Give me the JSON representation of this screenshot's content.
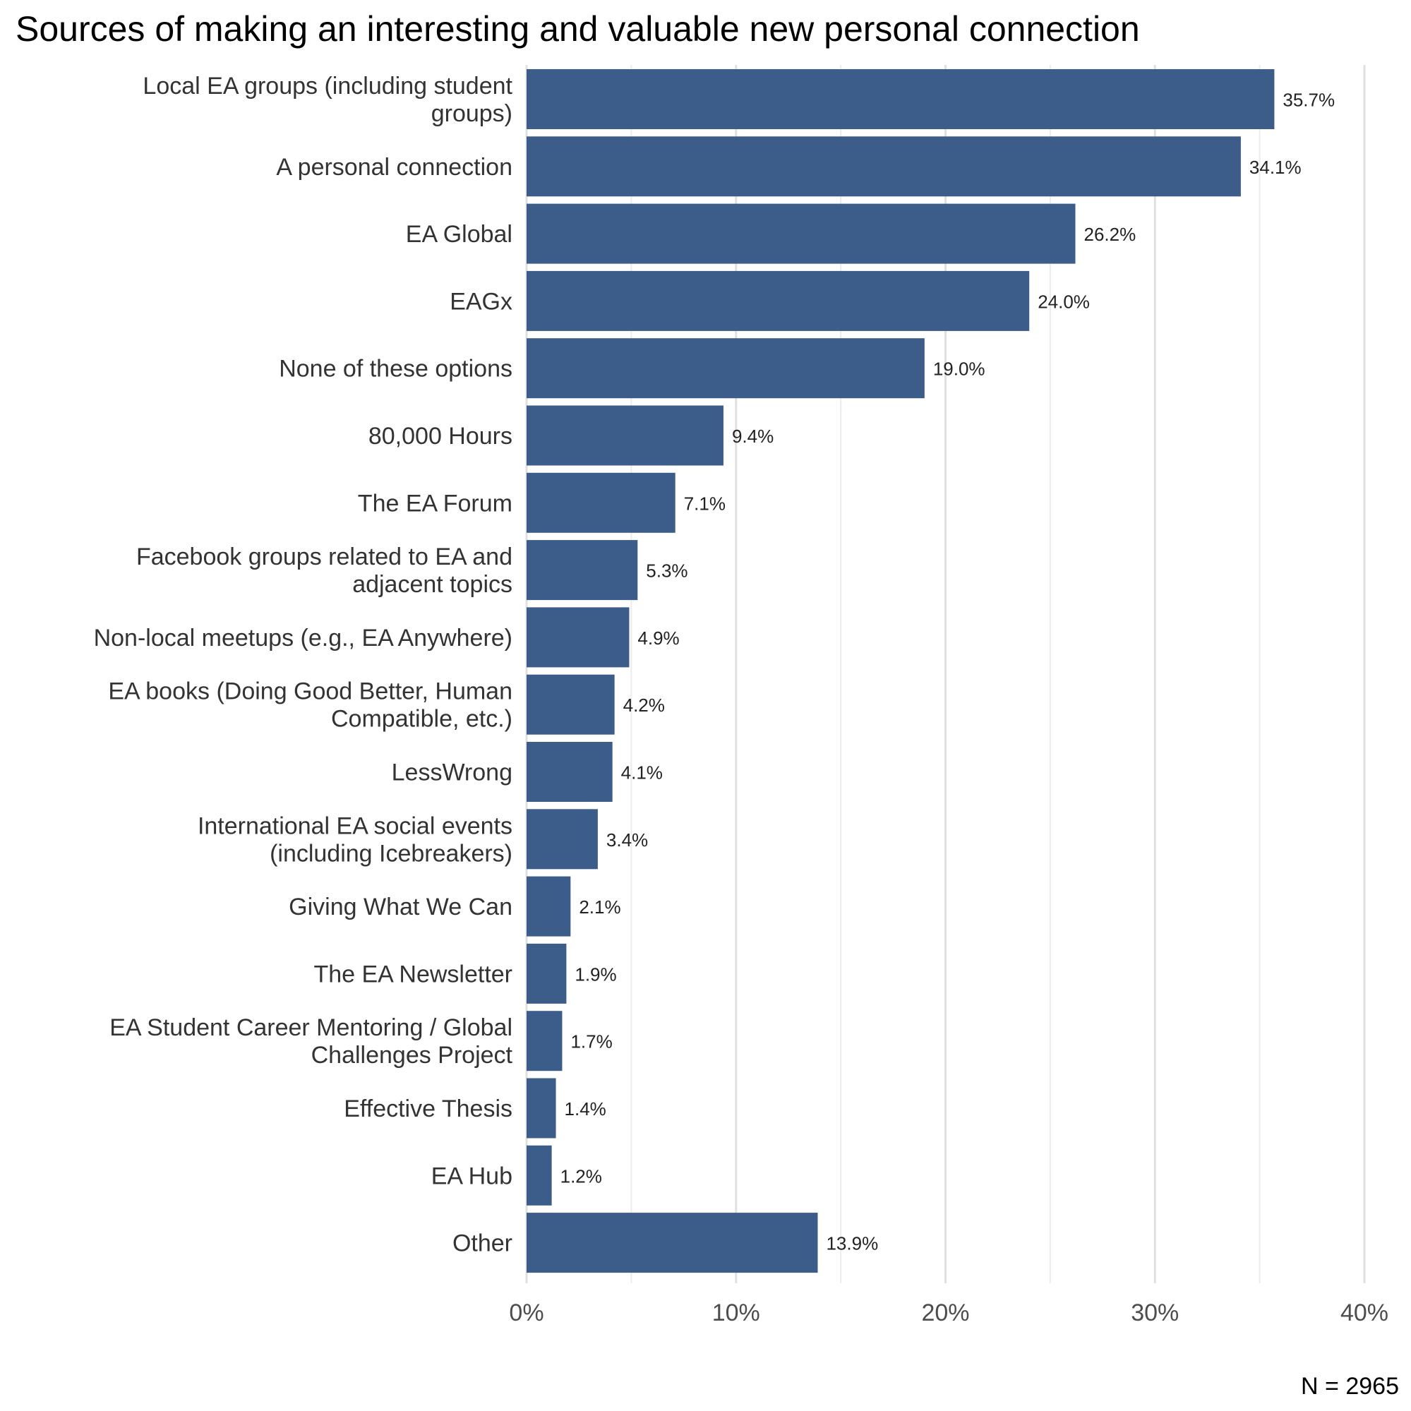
{
  "chart_data": {
    "type": "bar",
    "orientation": "horizontal",
    "title": "Sources of making an interesting and valuable new personal connection",
    "caption": "N = 2965",
    "xlabel": "",
    "ylabel": "",
    "xlim": [
      0,
      40
    ],
    "x_ticks": [
      "0%",
      "10%",
      "20%",
      "30%",
      "40%"
    ],
    "x_tick_values": [
      0,
      10,
      20,
      30,
      40
    ],
    "bar_color": "#3c5d8a",
    "grid": true,
    "categories": [
      {
        "label_lines": [
          "Local EA groups (including student",
          "groups)"
        ],
        "value": 35.7,
        "value_label": "35.7%"
      },
      {
        "label_lines": [
          "A personal connection"
        ],
        "value": 34.1,
        "value_label": "34.1%"
      },
      {
        "label_lines": [
          "EA Global"
        ],
        "value": 26.2,
        "value_label": "26.2%"
      },
      {
        "label_lines": [
          "EAGx"
        ],
        "value": 24.0,
        "value_label": "24.0%"
      },
      {
        "label_lines": [
          "None of these options"
        ],
        "value": 19.0,
        "value_label": "19.0%"
      },
      {
        "label_lines": [
          "80,000 Hours"
        ],
        "value": 9.4,
        "value_label": "9.4%"
      },
      {
        "label_lines": [
          "The EA Forum"
        ],
        "value": 7.1,
        "value_label": "7.1%"
      },
      {
        "label_lines": [
          "Facebook groups related to EA and",
          "adjacent topics"
        ],
        "value": 5.3,
        "value_label": "5.3%"
      },
      {
        "label_lines": [
          "Non-local meetups (e.g., EA Anywhere)"
        ],
        "value": 4.9,
        "value_label": "4.9%"
      },
      {
        "label_lines": [
          "EA books (Doing Good Better, Human",
          "Compatible, etc.)"
        ],
        "value": 4.2,
        "value_label": "4.2%"
      },
      {
        "label_lines": [
          "LessWrong"
        ],
        "value": 4.1,
        "value_label": "4.1%"
      },
      {
        "label_lines": [
          "International EA social events",
          "(including Icebreakers)"
        ],
        "value": 3.4,
        "value_label": "3.4%"
      },
      {
        "label_lines": [
          "Giving What We Can"
        ],
        "value": 2.1,
        "value_label": "2.1%"
      },
      {
        "label_lines": [
          "The EA Newsletter"
        ],
        "value": 1.9,
        "value_label": "1.9%"
      },
      {
        "label_lines": [
          "EA Student Career Mentoring / Global",
          "Challenges Project"
        ],
        "value": 1.7,
        "value_label": "1.7%"
      },
      {
        "label_lines": [
          "Effective Thesis"
        ],
        "value": 1.4,
        "value_label": "1.4%"
      },
      {
        "label_lines": [
          "EA Hub"
        ],
        "value": 1.2,
        "value_label": "1.2%"
      },
      {
        "label_lines": [
          "Other"
        ],
        "value": 13.9,
        "value_label": "13.9%"
      }
    ]
  }
}
